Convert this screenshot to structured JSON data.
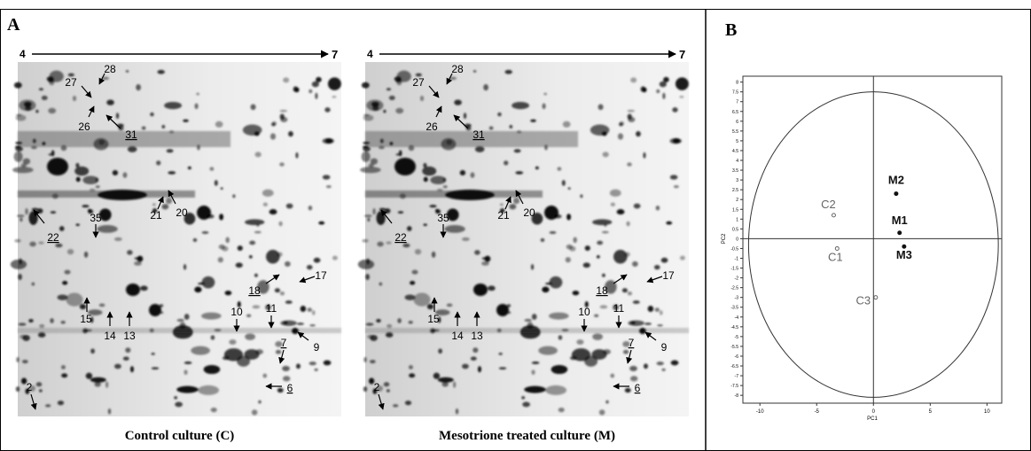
{
  "panel_a": {
    "label": "A",
    "spot_labels": [
      {
        "text": "28",
        "underline": false
      },
      {
        "text": "27",
        "underline": false
      },
      {
        "text": "26",
        "underline": false
      },
      {
        "text": "31",
        "underline": true
      },
      {
        "text": "22",
        "underline": true
      },
      {
        "text": "35",
        "underline": false
      },
      {
        "text": "21",
        "underline": false
      },
      {
        "text": "20",
        "underline": false
      },
      {
        "text": "18",
        "underline": true
      },
      {
        "text": "17",
        "underline": false
      },
      {
        "text": "15",
        "underline": false
      },
      {
        "text": "14",
        "underline": false
      },
      {
        "text": "13",
        "underline": false
      },
      {
        "text": "10",
        "underline": false
      },
      {
        "text": "11",
        "underline": false
      },
      {
        "text": "9",
        "underline": false
      },
      {
        "text": "7",
        "underline": true
      },
      {
        "text": "6",
        "underline": true
      },
      {
        "text": "2",
        "underline": false
      }
    ],
    "gels": [
      {
        "ph_start": "4",
        "ph_end": "7",
        "caption": "Control culture (C)"
      },
      {
        "ph_start": "4",
        "ph_end": "7",
        "caption": "Mesotrione treated culture (M)"
      }
    ]
  },
  "chart_data": {
    "type": "scatter",
    "title": "B",
    "xlabel": "PC1",
    "ylabel": "PC2",
    "x": [
      -3.5,
      -3.2,
      0.2,
      2.0,
      2.3,
      2.7
    ],
    "values": [
      1.2,
      -0.5,
      -3.0,
      2.3,
      0.3,
      -0.4
    ],
    "point_labels": [
      "C2",
      "C1",
      "C3",
      "M2",
      "M1",
      "M3"
    ],
    "point_colors": [
      "#666666",
      "#666666",
      "#666666",
      "#111111",
      "#111111",
      "#111111"
    ],
    "filled": [
      false,
      false,
      false,
      true,
      true,
      true
    ],
    "xlim": [
      -11.5,
      11.3
    ],
    "ylim": [
      -8.4,
      8.3
    ],
    "xticks": [
      -10,
      -5,
      0,
      5,
      10
    ],
    "yticks": [
      8,
      7.5,
      7,
      6.5,
      6,
      5.5,
      5,
      4.5,
      4,
      3.5,
      3,
      2.5,
      2,
      1.5,
      1,
      0.5,
      0,
      -0.5,
      -1,
      -1.5,
      -2,
      -2.5,
      -3,
      -3.5,
      -4,
      -4.5,
      -5,
      -5.5,
      -6,
      -6.5,
      -7,
      -7.5,
      -8
    ]
  }
}
